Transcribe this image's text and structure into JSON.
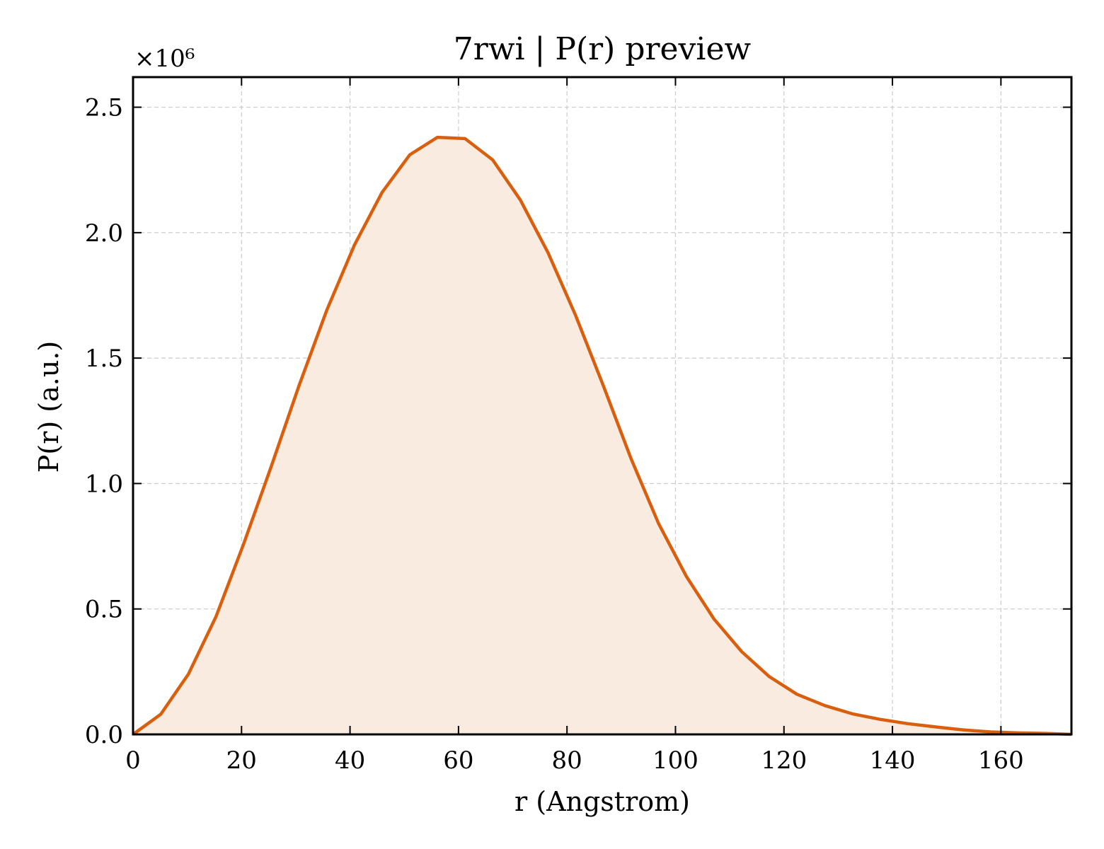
{
  "chart_data": {
    "type": "area",
    "title": "7rwi | P(r) preview",
    "xlabel": "r (Angstrom)",
    "ylabel": "P(r) (a.u.)",
    "y_multiplier_label": "×10⁶",
    "xlim": [
      0,
      173
    ],
    "ylim": [
      0,
      2.62
    ],
    "xticks": [
      0,
      20,
      40,
      60,
      80,
      100,
      120,
      140,
      160
    ],
    "xtick_labels": [
      "0",
      "20",
      "40",
      "60",
      "80",
      "100",
      "120",
      "140",
      "160"
    ],
    "yticks": [
      0,
      0.5,
      1.0,
      1.5,
      2.0,
      2.5
    ],
    "ytick_labels": [
      "0.0",
      "0.5",
      "1.0",
      "1.5",
      "2.0",
      "2.5"
    ],
    "grid": true,
    "line_color": "#d95f0e",
    "fill_color": "#f9ebe0",
    "series": [
      {
        "x": [
          0,
          5.1,
          10.2,
          15.3,
          20.4,
          25.5,
          30.6,
          35.7,
          40.8,
          45.9,
          51.0,
          56.1,
          61.2,
          66.3,
          71.4,
          76.5,
          81.6,
          86.7,
          91.8,
          96.9,
          102.0,
          107.1,
          112.2,
          117.3,
          122.4,
          127.5,
          132.6,
          137.7,
          142.8,
          147.9,
          153.0,
          158.1,
          163.2,
          168.3,
          173.0
        ],
        "y": [
          0.0,
          0.08,
          0.24,
          0.47,
          0.76,
          1.07,
          1.39,
          1.69,
          1.95,
          2.16,
          2.31,
          2.38,
          2.375,
          2.29,
          2.13,
          1.92,
          1.67,
          1.39,
          1.1,
          0.84,
          0.63,
          0.46,
          0.33,
          0.23,
          0.16,
          0.115,
          0.082,
          0.06,
          0.043,
          0.03,
          0.018,
          0.01,
          0.006,
          0.004,
          0.0
        ]
      }
    ]
  }
}
